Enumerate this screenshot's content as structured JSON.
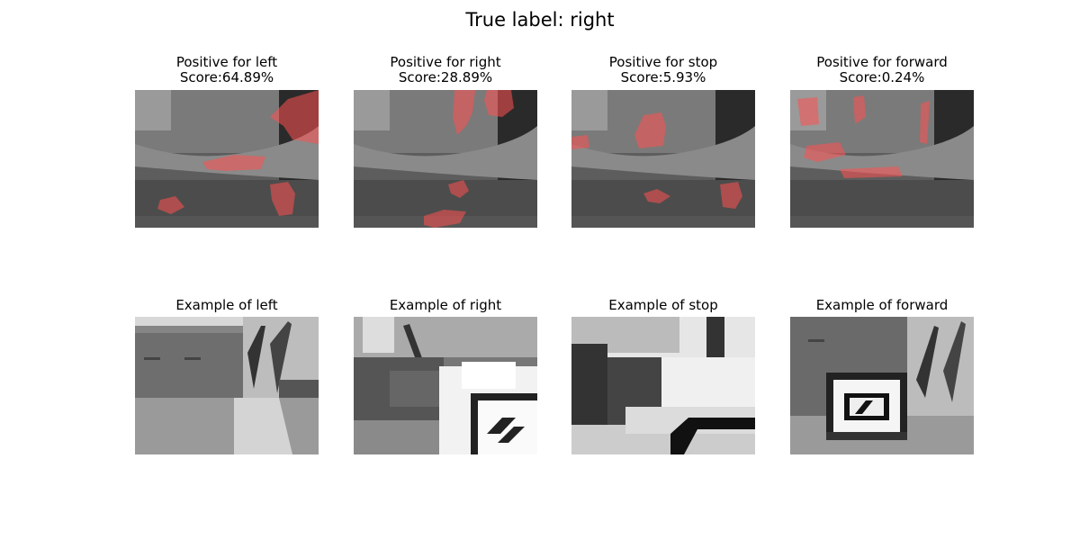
{
  "figure": {
    "title": "True label: right"
  },
  "positive_panels": [
    {
      "title": "Positive for left",
      "score_text": "Score:64.89%",
      "score": 64.89
    },
    {
      "title": "Positive for right",
      "score_text": "Score:28.89%",
      "score": 28.89
    },
    {
      "title": "Positive for stop",
      "score_text": "Score:5.93%",
      "score": 5.93
    },
    {
      "title": "Positive for forward",
      "score_text": "Score:0.24%",
      "score": 0.24
    }
  ],
  "example_panels": [
    {
      "title": "Example of left"
    },
    {
      "title": "Example of right"
    },
    {
      "title": "Example of stop"
    },
    {
      "title": "Example of forward"
    }
  ],
  "colors": {
    "highlight": "#ff5050",
    "background": "#ffffff"
  }
}
